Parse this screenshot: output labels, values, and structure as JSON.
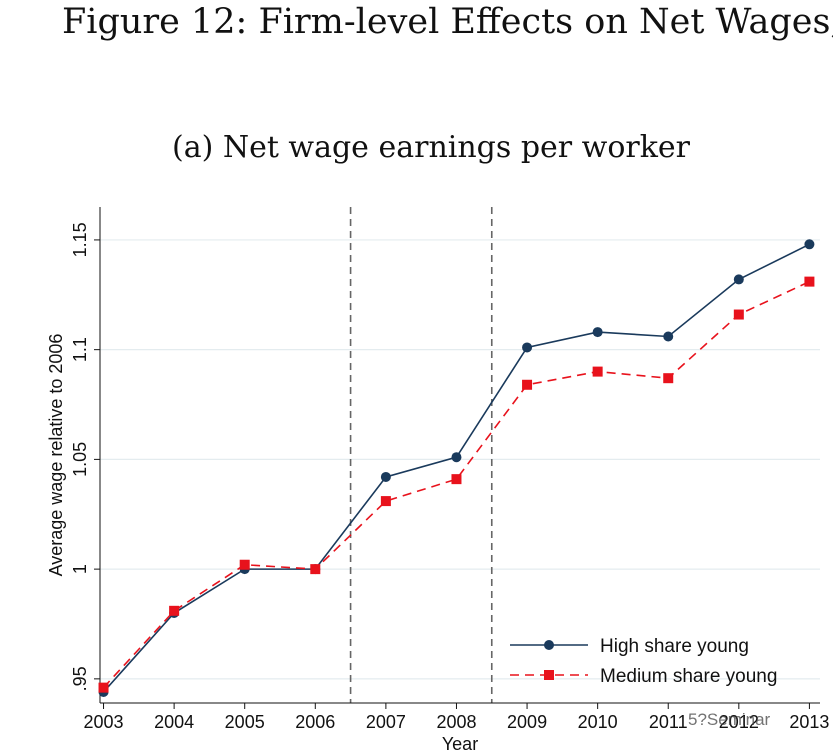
{
  "figure_title": "Figure 12: Firm-level Effects on Net Wages,",
  "watermark": "5?Seminar",
  "chart_data": {
    "type": "line",
    "title": "(a) Net wage earnings per worker",
    "xlabel": "Year",
    "ylabel": "Average wage relative to 2006",
    "x": [
      2003,
      2004,
      2005,
      2006,
      2007,
      2008,
      2009,
      2010,
      2011,
      2012,
      2013
    ],
    "xticks": [
      "2003",
      "2004",
      "2005",
      "2006",
      "2007",
      "2008",
      "2009",
      "2010",
      "2011",
      "2012",
      "2013"
    ],
    "yticks": [
      {
        "value": 0.95,
        "label": ".95"
      },
      {
        "value": 1.0,
        "label": "1"
      },
      {
        "value": 1.05,
        "label": "1.05"
      },
      {
        "value": 1.1,
        "label": "1.1"
      },
      {
        "value": 1.15,
        "label": "1.15"
      }
    ],
    "ylim": [
      0.939,
      1.165
    ],
    "xlim": [
      2002.95,
      2013.15
    ],
    "vlines": [
      2006.5,
      2008.5
    ],
    "series": [
      {
        "name": "High share young",
        "color": "#1a3a5c",
        "marker": "circle",
        "dash": "solid",
        "values": [
          0.944,
          0.98,
          1.0,
          1.0,
          1.042,
          1.051,
          1.101,
          1.108,
          1.106,
          1.132,
          1.148
        ]
      },
      {
        "name": "Medium share young",
        "color": "#e8121c",
        "marker": "square",
        "dash": "dashed",
        "values": [
          0.946,
          0.981,
          1.002,
          1.0,
          1.031,
          1.041,
          1.084,
          1.09,
          1.087,
          1.116,
          1.131
        ]
      }
    ],
    "legend_position": "bottom-right"
  }
}
